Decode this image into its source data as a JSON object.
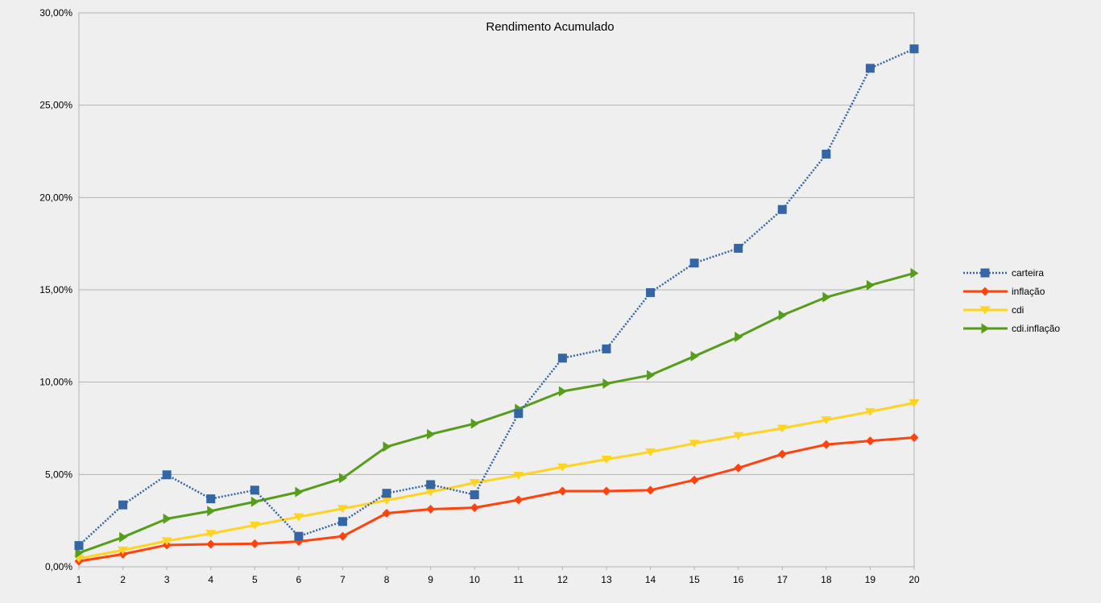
{
  "chart_data": {
    "type": "line",
    "title": "Rendimento Acumulado",
    "xlabel": "",
    "ylabel": "",
    "categories": [
      "1",
      "2",
      "3",
      "4",
      "5",
      "6",
      "7",
      "8",
      "9",
      "10",
      "11",
      "12",
      "13",
      "14",
      "15",
      "16",
      "17",
      "18",
      "19",
      "20"
    ],
    "y_ticks": [
      "0,00%",
      "5,00%",
      "10,00%",
      "15,00%",
      "20,00%",
      "25,00%",
      "30,00%"
    ],
    "ylim": [
      0,
      30
    ],
    "grid": true,
    "legend_position": "right",
    "series": [
      {
        "name": "carteira",
        "color": "#3465a4",
        "line_style": "dotted",
        "marker": "square",
        "values": [
          1.15,
          3.35,
          4.98,
          3.68,
          4.15,
          1.65,
          2.45,
          3.98,
          4.45,
          3.9,
          8.3,
          11.3,
          11.8,
          14.85,
          16.45,
          17.25,
          19.35,
          22.35,
          27.0,
          28.05
        ]
      },
      {
        "name": "inflação",
        "color": "#ff420e",
        "line_style": "solid",
        "marker": "diamond",
        "values": [
          0.3,
          0.68,
          1.18,
          1.22,
          1.25,
          1.37,
          1.65,
          2.9,
          3.12,
          3.2,
          3.62,
          4.1,
          4.1,
          4.15,
          4.7,
          5.35,
          6.1,
          6.62,
          6.82,
          7.0
        ]
      },
      {
        "name": "cdi",
        "color": "#ffd320",
        "line_style": "solid",
        "marker": "triangle-down",
        "values": [
          0.45,
          0.9,
          1.4,
          1.8,
          2.25,
          2.7,
          3.15,
          3.6,
          4.05,
          4.55,
          4.95,
          5.4,
          5.82,
          6.22,
          6.68,
          7.1,
          7.5,
          7.95,
          8.4,
          8.88
        ]
      },
      {
        "name": "cdi.inflação",
        "color": "#579d1c",
        "line_style": "solid",
        "marker": "triangle-right",
        "values": [
          0.75,
          1.6,
          2.6,
          3.02,
          3.52,
          4.05,
          4.8,
          6.5,
          7.18,
          7.75,
          8.55,
          9.5,
          9.92,
          10.38,
          11.4,
          12.45,
          13.62,
          14.6,
          15.25,
          15.9
        ]
      }
    ]
  }
}
